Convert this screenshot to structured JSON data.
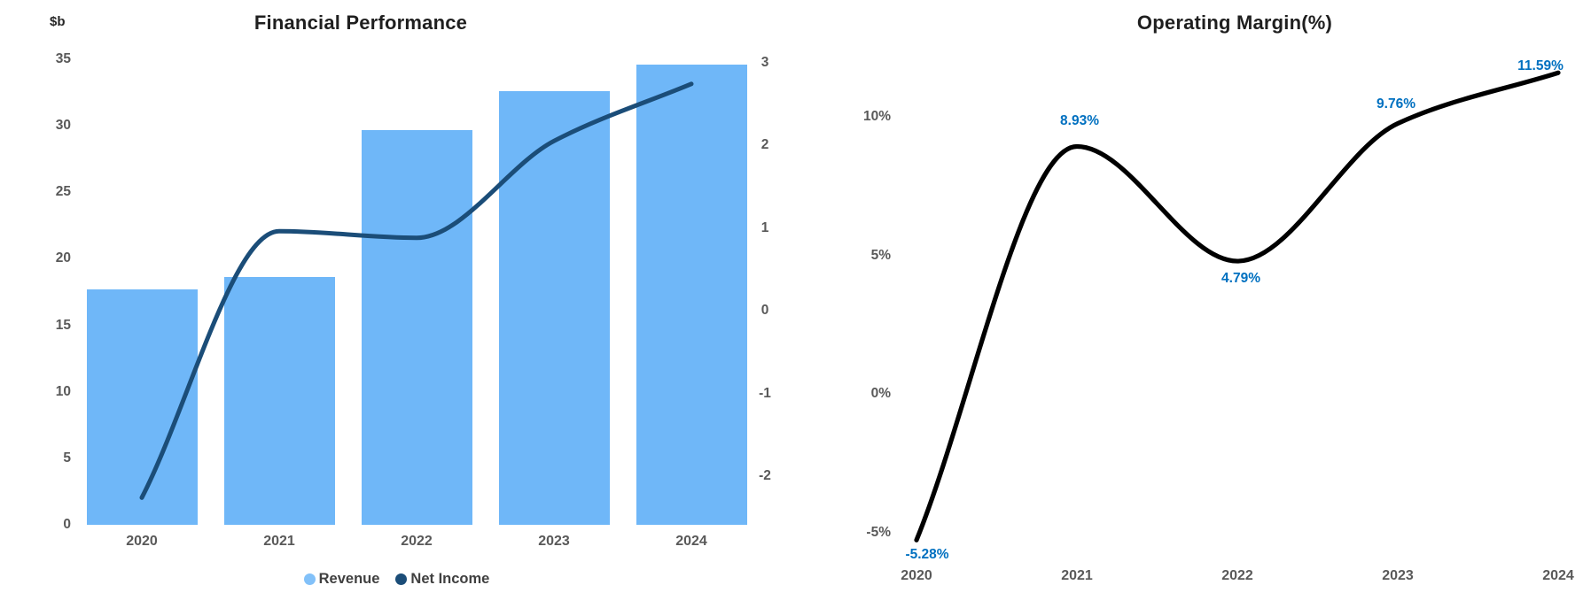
{
  "chart_data": [
    {
      "type": "bar",
      "title": "Financial Performance",
      "y_left_unit": "$b",
      "categories": [
        "2020",
        "2021",
        "2022",
        "2023",
        "2024"
      ],
      "series": [
        {
          "name": "Revenue",
          "type": "bar",
          "axis": "left",
          "color": "#6FB7F8",
          "legend_dot_color": "#82C1F9",
          "values": [
            17.7,
            18.6,
            29.7,
            32.6,
            34.6
          ]
        },
        {
          "name": "Net Income",
          "type": "line",
          "axis": "right",
          "color": "#1B4D78",
          "legend_dot_color": "#1B4D78",
          "values": [
            -2.26,
            0.96,
            0.88,
            2.05,
            2.74
          ]
        }
      ],
      "left_axis": {
        "ticks": [
          35,
          30,
          25,
          20,
          15,
          10,
          5,
          0
        ],
        "min": 0,
        "max": 35
      },
      "right_axis": {
        "ticks": [
          3,
          2,
          1,
          0,
          -1,
          -2
        ],
        "min": -2.6,
        "max": 3.2
      },
      "legend_position": "bottom",
      "grid": false
    },
    {
      "type": "line",
      "title": "Operating Margin(%)",
      "categories": [
        "2020",
        "2021",
        "2022",
        "2023",
        "2024"
      ],
      "series": [
        {
          "name": "Operating Margin",
          "type": "line",
          "color": "#000000",
          "values": [
            -5.28,
            8.93,
            4.79,
            9.76,
            11.59
          ]
        }
      ],
      "point_labels": [
        "-5.28%",
        "8.93%",
        "4.79%",
        "9.76%",
        "11.59%"
      ],
      "point_label_color": "#0070C0",
      "y_axis": {
        "tick_labels": [
          "10%",
          "5%",
          "0%",
          "-5%"
        ],
        "tick_values": [
          10,
          5,
          0,
          -5
        ],
        "min": -6.5,
        "max": 12.5
      },
      "grid": false
    }
  ],
  "colors": {
    "axis_text": "#595959",
    "title_text": "#1f1f1f",
    "revenue_bar": "#6FB7F8",
    "net_income_line": "#1B4D78",
    "margin_line": "#000000",
    "margin_label": "#0070C0"
  }
}
